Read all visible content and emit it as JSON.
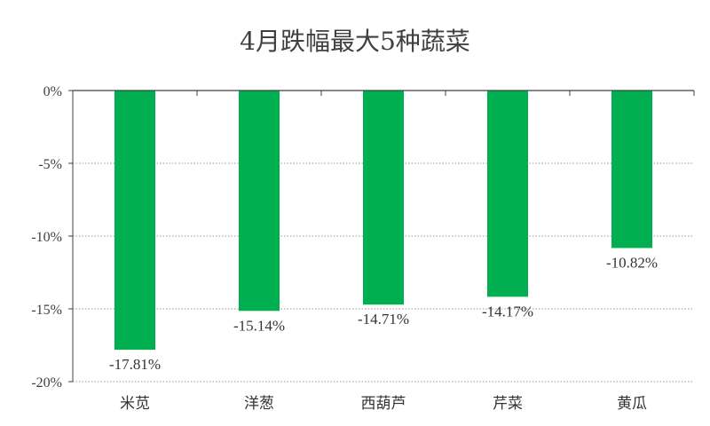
{
  "chart_data": {
    "type": "bar",
    "title": "4月跌幅最大5种蔬菜",
    "categories": [
      "米苋",
      "洋葱",
      "西葫芦",
      "芹菜",
      "黄瓜"
    ],
    "values": [
      -17.81,
      -15.14,
      -14.71,
      -14.17,
      -10.82
    ],
    "data_labels": [
      "-17.81%",
      "-15.14%",
      "-14.71%",
      "-14.17%",
      "-10.82%"
    ],
    "y_ticks": [
      "0%",
      "-5%",
      "-10%",
      "-15%",
      "-20%"
    ],
    "ylim": [
      -20,
      0
    ],
    "xlabel": "",
    "ylabel": "",
    "grid": true,
    "legend": false,
    "bar_color": "#00b050"
  }
}
